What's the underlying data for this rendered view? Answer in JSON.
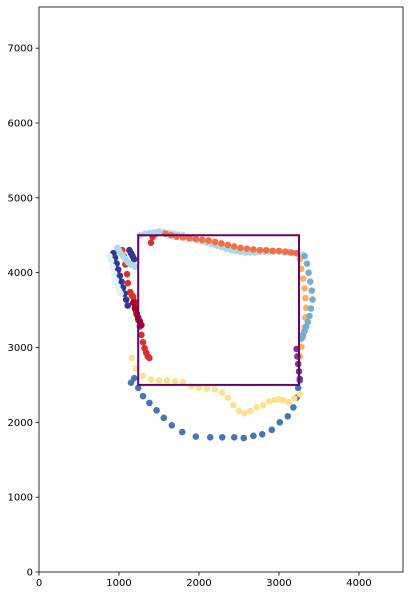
{
  "chart_data": {
    "type": "scatter",
    "title": "",
    "xlabel": "",
    "ylabel": "",
    "xlim": [
      0,
      4550
    ],
    "ylim": [
      0,
      7550
    ],
    "x_ticks": [
      0,
      1000,
      2000,
      3000,
      4000
    ],
    "x_tick_labels": [
      "0",
      "1000",
      "2000",
      "3000",
      "4000"
    ],
    "y_ticks": [
      0,
      1000,
      2000,
      3000,
      4000,
      5000,
      6000,
      7000
    ],
    "y_tick_labels": [
      "0",
      "1000",
      "2000",
      "3000",
      "4000",
      "5000",
      "6000",
      "7000"
    ],
    "grid": false,
    "legend": "none",
    "rectangle": {
      "x0": 1240,
      "x1": 3250,
      "y0": 2500,
      "y1": 4500,
      "color": "#6b006b"
    },
    "series": [
      {
        "color": "#4575b4",
        "x": [
          1150,
          1190,
          1240,
          1300,
          1380,
          1470,
          1560,
          1660,
          1790,
          1960,
          2140,
          2290,
          2440,
          2560,
          2680,
          2790,
          2910,
          3010,
          3110,
          3180,
          3220,
          3240,
          3260
        ],
        "y": [
          2530,
          2590,
          2460,
          2350,
          2260,
          2160,
          2060,
          1960,
          1870,
          1810,
          1800,
          1800,
          1800,
          1790,
          1820,
          1840,
          1900,
          2000,
          2080,
          2200,
          2330,
          2460,
          2560
        ]
      },
      {
        "color": "#fee090",
        "x": [
          1160,
          1210,
          1300,
          1400,
          1500,
          1600,
          1700,
          1800,
          1900,
          2000,
          2100,
          2200,
          2290,
          2360,
          2430,
          2500,
          2570,
          2640,
          2720,
          2800,
          2880,
          2950,
          3000,
          3050,
          3120,
          3190,
          3260
        ],
        "y": [
          2860,
          2720,
          2620,
          2570,
          2560,
          2560,
          2550,
          2540,
          2480,
          2460,
          2450,
          2440,
          2400,
          2330,
          2230,
          2150,
          2120,
          2150,
          2200,
          2230,
          2280,
          2300,
          2310,
          2300,
          2270,
          2320,
          2380
        ]
      },
      {
        "color": "#d73027",
        "x": [
          1040,
          1060,
          1080,
          1100,
          1110,
          1140,
          1160,
          1175,
          1190,
          1200,
          1210,
          1220,
          1240,
          1260,
          1280,
          1300,
          1320,
          1340,
          1360,
          1380,
          1400,
          1420,
          1440,
          1460,
          1480,
          1500
        ],
        "y": [
          4300,
          4220,
          4110,
          3980,
          3860,
          3740,
          3700,
          3680,
          3620,
          3560,
          3500,
          3440,
          3370,
          3280,
          3170,
          3070,
          2990,
          2930,
          2880,
          2860,
          4400,
          4480,
          4510,
          4520,
          4530,
          4540
        ]
      },
      {
        "color": "#313695",
        "x": [
          930,
          950,
          970,
          990,
          1010,
          1030,
          1050,
          1070,
          1090,
          1110,
          1130,
          1150,
          1170,
          1190
        ],
        "y": [
          4260,
          4200,
          4120,
          4040,
          3960,
          3880,
          3800,
          3720,
          3640,
          3560,
          4300,
          4260,
          4220,
          4180
        ]
      },
      {
        "color": "#abd9e9",
        "x": [
          980,
          1000,
          1020,
          1050,
          1080,
          1110,
          1150,
          1200,
          1260,
          1320,
          1380,
          1440,
          1500,
          1560,
          1620,
          1680,
          1740,
          1800,
          1860,
          1920,
          1980,
          2040,
          2100,
          2160,
          2220,
          2280,
          2340,
          2400,
          2460,
          2520,
          2580,
          2640,
          2700,
          2760,
          2820,
          2880,
          2940,
          3000,
          3060,
          3120,
          3180,
          3240,
          3300
        ],
        "y": [
          4330,
          4300,
          4260,
          4220,
          4180,
          4140,
          4110,
          4080,
          4500,
          4520,
          4530,
          4540,
          4550,
          4540,
          4530,
          4520,
          4510,
          4500,
          4480,
          4460,
          4440,
          4420,
          4400,
          4380,
          4360,
          4340,
          4320,
          4300,
          4290,
          4280,
          4270,
          4270,
          4270,
          4280,
          4280,
          4280,
          4280,
          4280,
          4270,
          4270,
          4260,
          4250,
          4240
        ]
      },
      {
        "color": "#f46d43",
        "x": [
          1580,
          1650,
          1720,
          1800,
          1880,
          1960,
          2040,
          2120,
          2200,
          2280,
          2360,
          2440,
          2520,
          2600,
          2680,
          2760,
          2840,
          2920,
          3000,
          3080,
          3150,
          3220
        ],
        "y": [
          4520,
          4500,
          4480,
          4470,
          4460,
          4450,
          4440,
          4430,
          4410,
          4390,
          4370,
          4350,
          4330,
          4320,
          4310,
          4300,
          4300,
          4290,
          4290,
          4280,
          4270,
          4260
        ]
      },
      {
        "color": "#fdae61",
        "x": [
          3260,
          3280,
          3300,
          3320,
          3330,
          3340,
          3330,
          3320,
          3300,
          3280,
          3260
        ],
        "y": [
          4180,
          4050,
          3920,
          3790,
          3660,
          3530,
          3400,
          3270,
          3140,
          3010,
          2880
        ]
      },
      {
        "color": "#74add1",
        "x": [
          3320,
          3350,
          3370,
          3390,
          3410,
          3420,
          3400,
          3380,
          3360,
          3340,
          3320,
          3300,
          3280
        ],
        "y": [
          4220,
          4120,
          4000,
          3880,
          3760,
          3640,
          3520,
          3420,
          3340,
          3280,
          3220,
          3170,
          3120
        ]
      },
      {
        "color": "#e0f3f8",
        "x": [
          880,
          900,
          920,
          940,
          960,
          980,
          1000,
          1020
        ],
        "y": [
          4220,
          4160,
          4080,
          3990,
          3900,
          3820,
          3760,
          3720
        ]
      },
      {
        "color": "#a50026",
        "x": [
          1180,
          1200,
          1220,
          1240,
          1260,
          1280
        ],
        "y": [
          3600,
          3520,
          3460,
          3400,
          3350,
          3300
        ]
      },
      {
        "color": "#7b3294",
        "x": [
          3220,
          3230,
          3240,
          3250,
          3260
        ],
        "y": [
          2980,
          2880,
          2780,
          2680,
          2580
        ]
      }
    ]
  }
}
